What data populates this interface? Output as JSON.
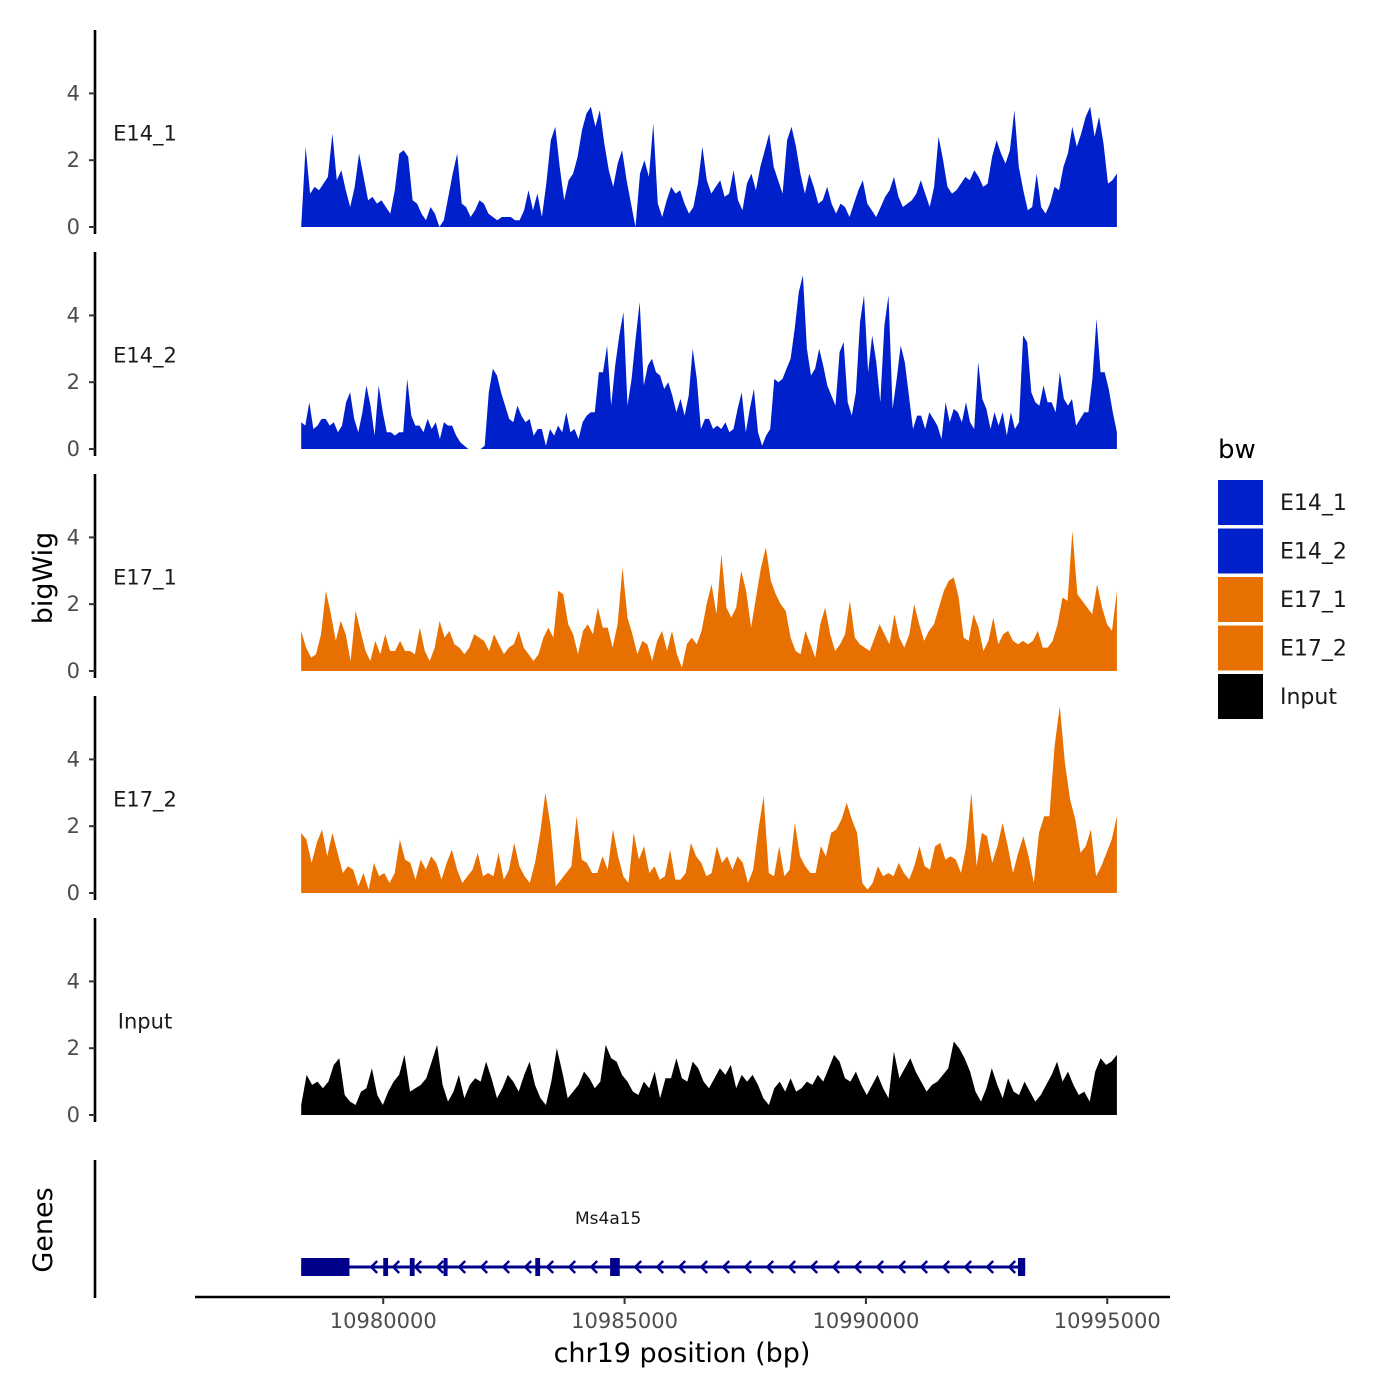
{
  "chart_data": {
    "type": "area",
    "subtype": "genome-browser-coverage-tracks",
    "chromosome": "chr19",
    "x_range": [
      10978300,
      10995200
    ],
    "xlim": [
      10976100,
      10996300
    ],
    "x_ticks": [
      10980000,
      10985000,
      10990000,
      10995000
    ],
    "x_tick_labels": [
      "10980000",
      "10985000",
      "10990000",
      "10995000"
    ],
    "xlabel": "chr19 position (bp)",
    "ylabel": "bigWig",
    "ylim": [
      0,
      6
    ],
    "y_ticks": [
      0,
      2,
      4
    ],
    "y_tick_labels": [
      "0",
      "2",
      "4"
    ],
    "legend_title": "bw",
    "legend_position": "right",
    "legend": [
      {
        "label": "E14_1",
        "color": "#0020CC"
      },
      {
        "label": "E14_2",
        "color": "#0020CC"
      },
      {
        "label": "E17_1",
        "color": "#E87000"
      },
      {
        "label": "E17_2",
        "color": "#E87000"
      },
      {
        "label": "Input",
        "color": "#000000"
      }
    ],
    "tracks": [
      {
        "name": "E14_1",
        "color": "#0020CC",
        "values": [
          0,
          2.4,
          1.0,
          1.2,
          1.1,
          1.3,
          1.5,
          2.8,
          1.4,
          1.7,
          1.1,
          0.6,
          1.2,
          2.2,
          1.5,
          0.8,
          0.9,
          0.7,
          0.8,
          0.6,
          0.4,
          1.1,
          2.2,
          2.3,
          2.1,
          0.8,
          0.7,
          0.4,
          0.2,
          0.6,
          0.4,
          0,
          0.2,
          0.9,
          1.6,
          2.2,
          0.7,
          0.6,
          0.3,
          0.5,
          0.8,
          0.7,
          0.4,
          0.3,
          0.2,
          0.3,
          0.3,
          0.3,
          0.2,
          0.2,
          0.5,
          1.1,
          0.5,
          1.0,
          0.3,
          1.3,
          2.6,
          3.0,
          1.8,
          0.8,
          1.4,
          1.6,
          2.1,
          2.9,
          3.4,
          3.6,
          3.0,
          3.5,
          2.5,
          1.7,
          1.2,
          1.9,
          2.3,
          1.4,
          0.7,
          0,
          1.6,
          2.0,
          1.5,
          3.1,
          0.7,
          0.3,
          0.8,
          1.2,
          1.0,
          1.1,
          0.7,
          0.4,
          0.6,
          1.3,
          2.4,
          1.4,
          1.0,
          1.2,
          1.4,
          0.9,
          1.0,
          1.7,
          0.8,
          0.5,
          1.3,
          1.6,
          1.1,
          1.8,
          2.3,
          2.8,
          1.8,
          1.4,
          1.0,
          2.6,
          3.0,
          2.4,
          1.6,
          1.0,
          1.6,
          1.2,
          0.7,
          0.8,
          1.2,
          0.7,
          0.4,
          0.7,
          0.6,
          0.3,
          0.7,
          1.1,
          1.4,
          0.7,
          0.5,
          0.3,
          0.6,
          0.9,
          1.1,
          1.5,
          0.9,
          0.6,
          0.7,
          0.8,
          1.0,
          1.4,
          1.0,
          0.6,
          1.2,
          2.7,
          2.0,
          1.2,
          1.0,
          1.1,
          1.3,
          1.5,
          1.4,
          1.7,
          1.5,
          1.2,
          1.3,
          2.1,
          2.6,
          2.2,
          1.9,
          2.3,
          3.5,
          1.8,
          1.1,
          0.5,
          0.6,
          1.6,
          0.6,
          0.4,
          0.7,
          1.2,
          1.1,
          1.8,
          2.2,
          3.0,
          2.4,
          2.8,
          3.3,
          3.6,
          2.7,
          3.3,
          2.5,
          1.3,
          1.4,
          1.6
        ]
      },
      {
        "name": "E14_2",
        "color": "#0020CC",
        "values": [
          0.8,
          0.7,
          1.4,
          0.6,
          0.7,
          0.9,
          0.9,
          0.7,
          0.8,
          0.5,
          0.7,
          1.4,
          1.7,
          0.9,
          0.5,
          1.1,
          1.9,
          1.3,
          0.4,
          1.9,
          1.1,
          0.5,
          0.5,
          0.4,
          0.5,
          0.5,
          2.1,
          1.0,
          0.7,
          0.7,
          0.5,
          0.9,
          0.6,
          0.8,
          0.3,
          0.8,
          0.7,
          0.7,
          0.4,
          0.2,
          0.1,
          0,
          0,
          0,
          0,
          0.1,
          1.7,
          2.4,
          2.2,
          1.7,
          1.3,
          0.9,
          0.8,
          1.3,
          1.0,
          0.8,
          0.9,
          0.4,
          0.6,
          0.6,
          0.1,
          0.6,
          0.4,
          0.7,
          0.5,
          1.1,
          0.5,
          0.6,
          0.3,
          0.8,
          1.0,
          1.1,
          1.1,
          2.3,
          2.3,
          3.1,
          1.3,
          2.5,
          3.4,
          4.1,
          1.3,
          2.1,
          3.3,
          4.4,
          1.9,
          2.5,
          2.7,
          2.3,
          2.2,
          1.8,
          2.0,
          1.6,
          1.1,
          1.5,
          1.0,
          1.6,
          3.0,
          2.1,
          0.6,
          0.9,
          0.9,
          0.6,
          0.7,
          0.6,
          0.8,
          0.5,
          0.6,
          1.2,
          1.7,
          0.5,
          1.2,
          1.8,
          0.5,
          0.1,
          0.4,
          0.6,
          2.1,
          2.0,
          2.1,
          2.4,
          2.7,
          3.6,
          4.7,
          5.2,
          3.0,
          2.2,
          2.4,
          3.0,
          2.5,
          1.9,
          1.6,
          1.3,
          2.9,
          3.2,
          1.4,
          1.0,
          1.7,
          3.8,
          4.6,
          2.3,
          3.4,
          2.6,
          1.4,
          3.7,
          4.6,
          1.2,
          2.1,
          3.1,
          2.6,
          1.6,
          0.6,
          1.0,
          1.0,
          0.6,
          1.1,
          0.9,
          0.7,
          0.3,
          1.4,
          0.8,
          1.2,
          1.1,
          0.8,
          1.4,
          0.8,
          0.6,
          2.6,
          1.5,
          1.2,
          0.6,
          1.1,
          0.7,
          1.1,
          0.4,
          1.1,
          0.6,
          0.8,
          3.4,
          3.2,
          1.7,
          1.4,
          1.3,
          1.9,
          1.4,
          1.4,
          1.1,
          2.3,
          1.5,
          1.3,
          1.5,
          0.7,
          0.9,
          1.1,
          1.1,
          2.1,
          3.9,
          2.3,
          2.3,
          1.8,
          1.1,
          0.5
        ]
      },
      {
        "name": "E17_1",
        "color": "#E87000",
        "values": [
          1.2,
          0.7,
          0.4,
          0.5,
          1.1,
          2.4,
          1.7,
          0.9,
          1.5,
          1.1,
          0.3,
          1.8,
          1.2,
          0.6,
          0.3,
          0.9,
          0.5,
          1.1,
          0.6,
          0.6,
          0.9,
          0.6,
          0.6,
          0.5,
          1.3,
          0.6,
          0.3,
          0.7,
          1.5,
          1.0,
          1.2,
          0.8,
          0.7,
          0.5,
          0.7,
          1.1,
          1.0,
          0.9,
          0.6,
          1.1,
          0.8,
          0.5,
          0.7,
          0.8,
          1.2,
          0.7,
          0.5,
          0.3,
          0.5,
          1.0,
          1.3,
          1.0,
          2.4,
          2.3,
          1.4,
          1.1,
          0.5,
          1.2,
          1.4,
          1.1,
          1.9,
          1.3,
          1.3,
          0.7,
          1.4,
          3.1,
          1.6,
          1.1,
          0.5,
          0.9,
          0.8,
          0.3,
          0.9,
          1.2,
          0.6,
          1.2,
          0.5,
          0.1,
          0.8,
          1.0,
          0.8,
          1.2,
          2.0,
          2.6,
          1.7,
          3.5,
          1.9,
          1.6,
          1.9,
          3.0,
          2.4,
          1.3,
          2.2,
          3.1,
          3.7,
          2.7,
          2.3,
          2.0,
          1.8,
          1.0,
          0.6,
          0.5,
          1.2,
          0.8,
          0.4,
          1.4,
          1.9,
          1.1,
          0.6,
          0.8,
          1.1,
          2.1,
          1.0,
          0.8,
          0.7,
          0.6,
          1.0,
          1.4,
          1.1,
          0.8,
          1.7,
          1.0,
          0.7,
          1.1,
          2.0,
          1.4,
          0.9,
          1.2,
          1.4,
          1.9,
          2.4,
          2.7,
          2.8,
          2.2,
          1.0,
          0.9,
          1.7,
          1.3,
          0.6,
          0.9,
          1.6,
          0.8,
          1.1,
          1.2,
          0.9,
          0.8,
          0.9,
          0.8,
          0.9,
          1.2,
          0.7,
          0.7,
          0.9,
          1.4,
          2.2,
          2.1,
          4.2,
          2.3,
          2.1,
          1.9,
          1.7,
          2.6,
          1.9,
          1.4,
          1.2,
          2.4
        ]
      },
      {
        "name": "E17_2",
        "color": "#E87000",
        "values": [
          1.8,
          1.6,
          0.9,
          1.5,
          1.9,
          1.1,
          1.8,
          1.2,
          0.6,
          0.8,
          0.7,
          0.2,
          0.6,
          0.1,
          0.9,
          0.5,
          0.6,
          0.3,
          0.6,
          1.6,
          1.0,
          0.9,
          0.4,
          1.0,
          0.7,
          1.1,
          0.9,
          0.4,
          0.9,
          1.3,
          0.7,
          0.3,
          0.5,
          0.7,
          1.2,
          0.5,
          0.6,
          0.5,
          1.2,
          0.4,
          0.7,
          1.5,
          0.8,
          0.5,
          0.3,
          0.9,
          1.8,
          3.0,
          2.0,
          0.2,
          0.4,
          0.6,
          0.8,
          2.3,
          1.0,
          0.9,
          0.6,
          0.6,
          1.1,
          0.7,
          1.9,
          1.1,
          0.5,
          0.3,
          1.8,
          1.0,
          1.4,
          0.6,
          0.8,
          0.4,
          0.5,
          1.3,
          0.4,
          0.4,
          0.6,
          1.5,
          1.1,
          0.9,
          0.5,
          0.6,
          1.4,
          0.9,
          1.1,
          0.7,
          1.1,
          0.9,
          0.3,
          0.7,
          1.9,
          2.9,
          0.6,
          0.5,
          1.4,
          0.5,
          0.7,
          2.1,
          1.1,
          0.8,
          0.6,
          0.6,
          1.4,
          1.1,
          1.8,
          1.9,
          2.2,
          2.7,
          2.2,
          1.8,
          0.3,
          0.1,
          0.3,
          0.8,
          0.5,
          0.6,
          0.5,
          0.9,
          0.6,
          0.4,
          0.8,
          1.4,
          0.8,
          0.7,
          1.4,
          1.5,
          1.0,
          1.1,
          1.0,
          0.6,
          1.4,
          3.0,
          0.8,
          1.8,
          1.7,
          0.9,
          1.4,
          2.1,
          1.4,
          0.6,
          1.2,
          1.7,
          1.1,
          0.3,
          1.8,
          2.3,
          2.3,
          4.4,
          5.6,
          3.9,
          2.8,
          2.2,
          1.2,
          1.4,
          1.9,
          0.5,
          0.8,
          1.2,
          1.6,
          2.3
        ]
      },
      {
        "name": "Input",
        "color": "#000000",
        "values": [
          0.3,
          1.2,
          0.9,
          1.0,
          0.8,
          1.0,
          1.5,
          1.7,
          0.6,
          0.4,
          0.3,
          0.7,
          0.8,
          1.4,
          0.6,
          0.3,
          0.7,
          1.0,
          1.2,
          1.8,
          0.7,
          0.8,
          0.9,
          1.1,
          1.6,
          2.1,
          0.9,
          0.4,
          0.7,
          1.2,
          0.5,
          0.9,
          1.1,
          1.0,
          1.6,
          1.1,
          0.5,
          0.8,
          1.2,
          1.0,
          0.7,
          1.2,
          1.6,
          0.9,
          0.5,
          0.3,
          1.0,
          2.0,
          1.3,
          0.5,
          0.7,
          0.9,
          1.3,
          1.1,
          0.8,
          1.0,
          2.1,
          1.7,
          1.6,
          1.2,
          1.0,
          0.7,
          0.6,
          1.0,
          0.8,
          1.3,
          0.5,
          1.1,
          1.1,
          1.7,
          1.1,
          1.0,
          1.6,
          1.4,
          1.0,
          0.8,
          1.1,
          1.4,
          1.2,
          1.5,
          0.8,
          1.2,
          1.0,
          1.2,
          0.9,
          0.5,
          0.3,
          0.8,
          1.0,
          0.7,
          1.1,
          0.7,
          0.8,
          1.0,
          0.9,
          1.2,
          1.0,
          1.4,
          1.8,
          1.6,
          1.1,
          1.0,
          1.3,
          0.9,
          0.6,
          0.9,
          1.2,
          0.8,
          0.5,
          1.9,
          1.1,
          1.4,
          1.7,
          1.3,
          1.0,
          0.7,
          0.9,
          1.0,
          1.2,
          1.4,
          2.2,
          2.0,
          1.7,
          1.3,
          0.7,
          0.4,
          0.8,
          1.4,
          0.9,
          0.5,
          1.1,
          0.7,
          0.6,
          1.0,
          0.7,
          0.4,
          0.6,
          0.9,
          1.2,
          1.6,
          1.0,
          1.3,
          0.9,
          0.6,
          0.7,
          0.4,
          1.3,
          1.7,
          1.5,
          1.6,
          1.8
        ]
      }
    ],
    "genes": [
      {
        "name": "Ms4a15",
        "start": 10978300,
        "end": 10993300,
        "strand": "-",
        "exons": [
          [
            10978300,
            10979300
          ],
          [
            10980000,
            10980100
          ],
          [
            10980550,
            10980650
          ],
          [
            10981250,
            10981330
          ],
          [
            10983150,
            10983250
          ],
          [
            10984700,
            10984900
          ],
          [
            10993150,
            10993300
          ]
        ]
      }
    ],
    "gene_track_label": "Genes"
  }
}
